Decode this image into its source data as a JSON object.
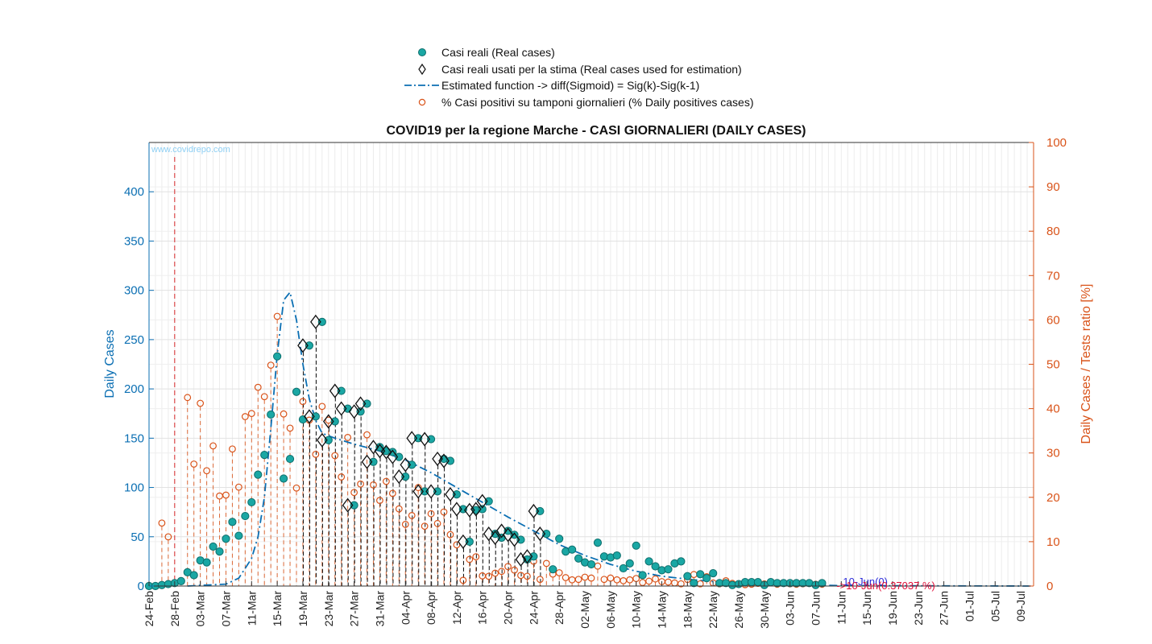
{
  "chart_data": {
    "type": "scatter",
    "title": "COVID19 per la regione Marche - CASI GIORNALIERI (DAILY CASES)",
    "ylabel_left": "Daily Cases",
    "ylabel_right": "Daily Cases / Tests ratio [%]",
    "watermark": "www.covidrepo.com",
    "ylim_left": [
      0,
      450
    ],
    "ylim_right": [
      0,
      100
    ],
    "yticks_left": [
      "0",
      "50",
      "100",
      "150",
      "200",
      "250",
      "300",
      "350",
      "400"
    ],
    "yticks_right": [
      "0",
      "10",
      "20",
      "30",
      "40",
      "50",
      "60",
      "70",
      "80",
      "90",
      "100"
    ],
    "x_start": "2020-02-24",
    "x_end": "2020-07-11",
    "xtick_labels": [
      "24-Feb",
      "28-Feb",
      "03-Mar",
      "07-Mar",
      "11-Mar",
      "15-Mar",
      "19-Mar",
      "23-Mar",
      "27-Mar",
      "31-Mar",
      "04-Apr",
      "08-Apr",
      "12-Apr",
      "16-Apr",
      "20-Apr",
      "24-Apr",
      "28-Apr",
      "02-May",
      "06-May",
      "10-May",
      "14-May",
      "18-May",
      "22-May",
      "26-May",
      "30-May",
      "03-Jun",
      "07-Jun",
      "11-Jun",
      "15-Jun",
      "19-Jun",
      "23-Jun",
      "27-Jun",
      "01-Jul",
      "05-Jul",
      "09-Jul"
    ],
    "grid": true,
    "legend_placement": "top-center",
    "colors": {
      "real": "#1aa7a4",
      "real_edge": "#0e6e6c",
      "used": "#111111",
      "fit": "#0b6fb3",
      "pct": "#d95319",
      "left_axis": "#0b6fb3",
      "right_axis": "#d95319",
      "vline": "#d62728",
      "annotation_blue": "#2b2bd9",
      "annotation_red": "#e0103a"
    },
    "series": [
      {
        "name": "Casi reali (Real cases)",
        "marker": "filled-circle",
        "values": [
          0,
          0,
          1,
          2,
          3,
          5,
          14,
          11,
          26,
          24,
          40,
          35,
          48,
          65,
          51,
          71,
          85,
          113,
          133,
          174,
          233,
          109,
          129,
          197,
          169,
          244,
          172,
          268,
          148,
          167,
          198,
          180,
          82,
          177,
          185,
          126,
          141,
          137,
          136,
          131,
          111,
          123,
          150,
          96,
          149,
          96,
          129,
          127,
          93,
          78,
          45,
          77,
          78,
          86,
          53,
          49,
          56,
          52,
          47,
          27,
          30,
          76,
          53,
          17,
          48,
          35,
          37,
          28,
          24,
          22,
          44,
          30,
          29,
          31,
          18,
          23,
          41,
          11,
          25,
          20,
          16,
          17,
          23,
          25,
          10,
          3,
          12,
          8,
          13,
          3,
          3,
          1,
          2,
          4,
          4,
          4,
          1,
          4,
          3,
          3,
          3,
          3,
          3,
          3,
          1,
          3
        ]
      },
      {
        "name": "Casi reali usati per la stima (Real cases used for estimation)",
        "marker": "open-diamond",
        "start": "2020-03-19",
        "values": [
          244,
          172,
          268,
          148,
          167,
          198,
          180,
          82,
          177,
          185,
          126,
          141,
          137,
          136,
          131,
          111,
          123,
          150,
          96,
          149,
          96,
          129,
          127,
          93,
          78,
          45,
          77,
          78,
          86,
          53,
          49,
          56,
          52,
          47,
          27,
          30,
          76,
          53
        ]
      },
      {
        "name": "Estimated function -> diff(Sigmoid) = Sig(k)-Sig(k-1)",
        "line": "dash-dot",
        "x_dates": [
          "2020-03-01",
          "2020-03-07",
          "2020-03-09",
          "2020-03-11",
          "2020-03-12",
          "2020-03-13",
          "2020-03-14",
          "2020-03-15",
          "2020-03-16",
          "2020-03-17",
          "2020-03-18",
          "2020-03-19",
          "2020-03-20",
          "2020-03-21",
          "2020-03-22",
          "2020-03-24",
          "2020-03-27",
          "2020-03-31",
          "2020-04-04",
          "2020-04-08",
          "2020-04-12",
          "2020-04-16",
          "2020-04-20",
          "2020-04-24",
          "2020-04-28",
          "2020-05-02",
          "2020-05-06",
          "2020-05-10",
          "2020-05-14",
          "2020-05-18",
          "2020-05-22",
          "2020-05-26",
          "2020-05-30",
          "2020-06-03",
          "2020-06-07",
          "2020-06-11",
          "2020-06-15",
          "2020-07-11"
        ],
        "values": [
          0,
          2,
          8,
          28,
          50,
          90,
          160,
          235,
          290,
          298,
          270,
          225,
          190,
          168,
          155,
          150,
          144,
          137,
          128,
          115,
          100,
          85,
          70,
          56,
          42,
          31,
          22,
          15,
          10,
          7,
          4.5,
          3,
          2,
          1.3,
          0.8,
          0.5,
          0.3,
          0
        ]
      },
      {
        "name": "% Casi positivi su tamponi giornalieri (% Daily positives cases)",
        "marker": "open-circle",
        "axis": "right",
        "values": [
          null,
          null,
          14.2,
          11.1,
          null,
          null,
          42.5,
          27.5,
          41.2,
          26.0,
          31.6,
          20.3,
          20.5,
          30.9,
          22.3,
          38.2,
          38.9,
          44.8,
          42.7,
          49.8,
          60.8,
          38.8,
          35.6,
          22.1,
          41.6,
          37.4,
          29.7,
          40.5,
          37.4,
          29.4,
          24.6,
          33.5,
          21.1,
          23.0,
          34.1,
          22.8,
          19.3,
          23.6,
          20.9,
          17.4,
          13.9,
          15.9,
          22.2,
          13.5,
          16.3,
          14.1,
          16.7,
          11.6,
          9.3,
          1.3,
          6.0,
          6.6,
          2.3,
          2.2,
          2.9,
          3.3,
          4.4,
          3.6,
          2.4,
          2.2,
          5.6,
          1.5,
          5.1,
          2.7,
          3.0,
          1.9,
          1.4,
          1.5,
          2.0,
          1.8,
          4.5,
          1.5,
          1.8,
          1.4,
          1.2,
          1.4,
          1.7,
          0.8,
          1.1,
          1.6,
          1.0,
          0.9,
          0.7,
          0.5,
          1.5,
          2.6,
          0.5,
          2.1,
          0.7,
          0.5,
          1.2,
          0.6,
          0.4,
          0.3,
          0.4,
          0.6,
          0.5,
          0.8,
          0.4,
          0.6,
          0.5,
          0.4,
          0.5,
          0.6,
          0.4,
          0.4
        ]
      }
    ],
    "vline_date": "2020-02-28",
    "annotations": [
      {
        "text": "10-Jun(0)",
        "color": "blue"
      },
      {
        "text": "->10-Jun(0.37037 %)",
        "color": "red"
      }
    ]
  }
}
